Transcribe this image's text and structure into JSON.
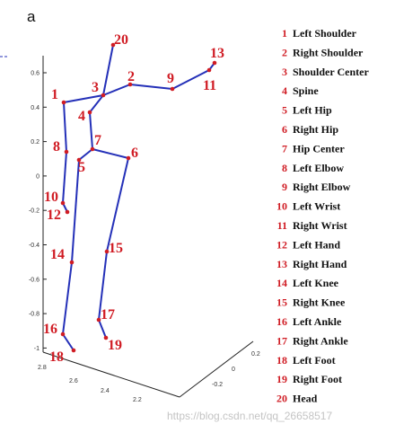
{
  "panel_label": "a",
  "axes": {
    "vertical_ticks": [
      "0.6",
      "0.4",
      "0.2",
      "0",
      "-0.2",
      "-0.4",
      "-0.6",
      "-0.8",
      "-1"
    ],
    "depth_ticks": [
      "2.8",
      "2.6",
      "2.4",
      "2.2"
    ],
    "side_ticks": [
      "0.2",
      "0",
      "-0.2"
    ]
  },
  "colors": {
    "bone": "#2430b8",
    "joint": "#d01c24",
    "axis": "#222222"
  },
  "joints": [
    {
      "id": "1",
      "name": "Left Shoulder"
    },
    {
      "id": "2",
      "name": "Right Shoulder"
    },
    {
      "id": "3",
      "name": "Shoulder Center"
    },
    {
      "id": "4",
      "name": "Spine"
    },
    {
      "id": "5",
      "name": "Left Hip"
    },
    {
      "id": "6",
      "name": "Right Hip"
    },
    {
      "id": "7",
      "name": "Hip Center"
    },
    {
      "id": "8",
      "name": "Left Elbow"
    },
    {
      "id": "9",
      "name": "Right Elbow"
    },
    {
      "id": "10",
      "name": "Left Wrist"
    },
    {
      "id": "11",
      "name": "Right Wrist"
    },
    {
      "id": "12",
      "name": "Left Hand"
    },
    {
      "id": "13",
      "name": "Right Hand"
    },
    {
      "id": "14",
      "name": "Left Knee"
    },
    {
      "id": "15",
      "name": "Right Knee"
    },
    {
      "id": "16",
      "name": "Left Ankle"
    },
    {
      "id": "17",
      "name": "Right Ankle"
    },
    {
      "id": "18",
      "name": "Left Foot"
    },
    {
      "id": "19",
      "name": "Right Foot"
    },
    {
      "id": "20",
      "name": "Head"
    }
  ],
  "watermark": "https://blog.csdn.net/qq_26658517"
}
